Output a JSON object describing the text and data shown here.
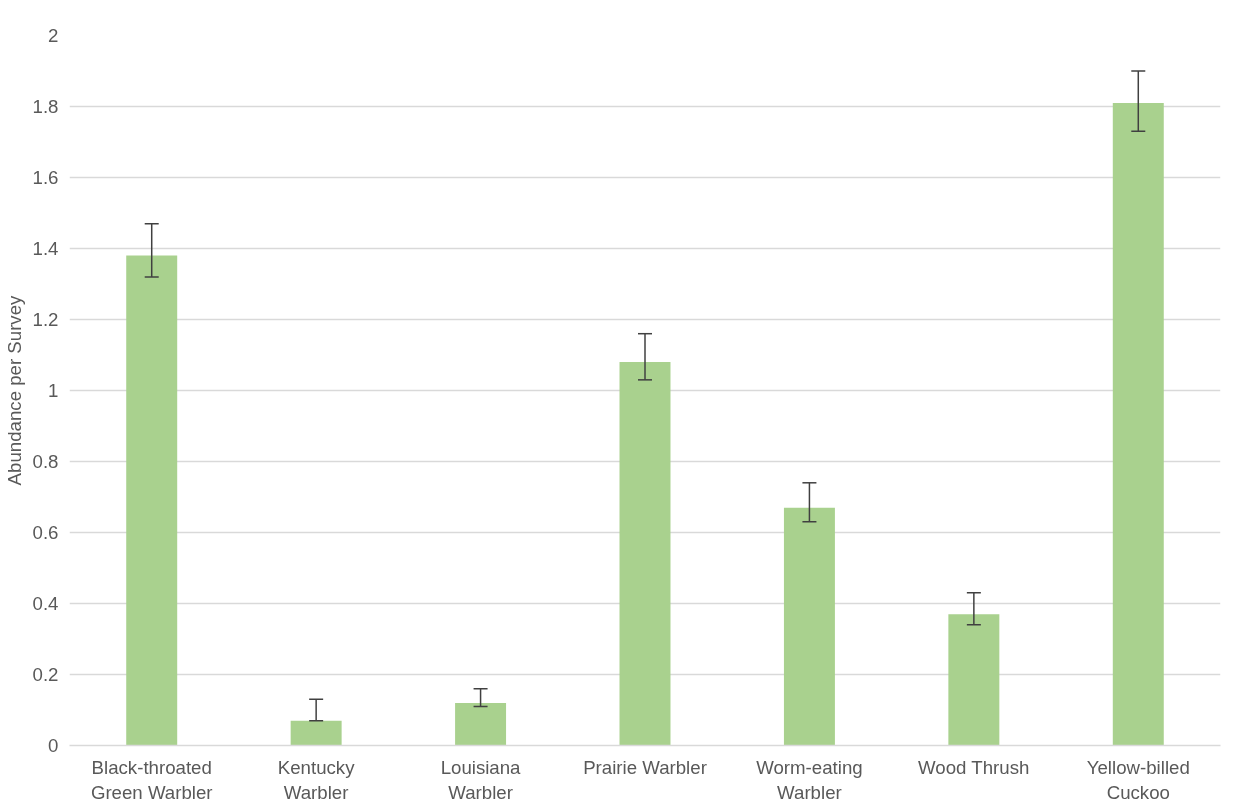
{
  "chart_data": {
    "type": "bar",
    "ylabel": "Abundance per Survey",
    "categories": [
      "Black-throated\nGreen Warbler",
      "Kentucky\nWarbler",
      "Louisiana\nWarbler",
      "Prairie Warbler",
      "Worm-eating\nWarbler",
      "Wood Thrush",
      "Yellow-billed\nCuckoo"
    ],
    "series": [
      {
        "color": "#a9d18e",
        "values": [
          1.38,
          0.07,
          0.12,
          1.08,
          0.67,
          0.37,
          1.81
        ],
        "errors": [
          [
            1.32,
            1.47
          ],
          [
            0.07,
            0.13
          ],
          [
            0.11,
            0.16
          ],
          [
            1.03,
            1.16
          ],
          [
            0.63,
            0.74
          ],
          [
            0.34,
            0.43
          ],
          [
            1.73,
            1.9
          ]
        ]
      }
    ],
    "ylim": [
      0,
      2
    ],
    "yticks": [
      0,
      0.2,
      0.4,
      0.6,
      0.8,
      1,
      1.2,
      1.4,
      1.6,
      1.8,
      2
    ],
    "grid": "y"
  }
}
